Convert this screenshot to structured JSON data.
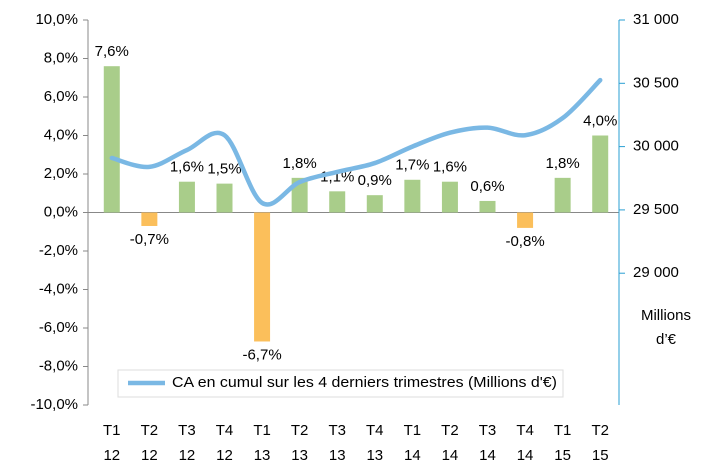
{
  "chart_data": {
    "type": "bar_line",
    "categories": [
      [
        "T1",
        "12"
      ],
      [
        "T2",
        "12"
      ],
      [
        "T3",
        "12"
      ],
      [
        "T4",
        "12"
      ],
      [
        "T1",
        "13"
      ],
      [
        "T2",
        "13"
      ],
      [
        "T3",
        "13"
      ],
      [
        "T4",
        "13"
      ],
      [
        "T1",
        "14"
      ],
      [
        "T2",
        "14"
      ],
      [
        "T3",
        "14"
      ],
      [
        "T4",
        "14"
      ],
      [
        "T1",
        "15"
      ],
      [
        "T2",
        "15"
      ]
    ],
    "series": [
      {
        "type": "bar",
        "colors": [
          "#a9cd8a",
          "#fbbf5b",
          "#a9cd8a",
          "#a9cd8a",
          "#fbbf5b",
          "#a9cd8a",
          "#a9cd8a",
          "#a9cd8a",
          "#a9cd8a",
          "#a9cd8a",
          "#a9cd8a",
          "#fbbf5b",
          "#a9cd8a",
          "#a9cd8a"
        ],
        "values": [
          7.6,
          -0.7,
          1.6,
          1.5,
          -6.7,
          1.8,
          1.1,
          0.9,
          1.7,
          1.6,
          0.6,
          -0.8,
          1.8,
          4.0
        ],
        "value_labels": [
          "7,6%",
          "-0,7%",
          "1,6%",
          "1,5%",
          "-6,7%",
          "1,8%",
          "1,1%",
          "0,9%",
          "1,7%",
          "1,6%",
          "0,6%",
          "-0,8%",
          "1,8%",
          "4,0%"
        ]
      },
      {
        "type": "line",
        "name": "CA en cumul sur les 4 derniers trimestres (Millions d'€)",
        "color": "#7ab8e4",
        "axis": "y2",
        "values": [
          29910,
          29840,
          29973,
          30090,
          29555,
          29720,
          29800,
          29870,
          30000,
          30110,
          30150,
          30090,
          30225,
          30525
        ]
      }
    ],
    "ylim": [
      -10,
      10
    ],
    "yticks": [
      {
        "value": -10,
        "label": "-10,0%"
      },
      {
        "value": -8,
        "label": "-8,0%"
      },
      {
        "value": -6,
        "label": "-6,0%"
      },
      {
        "value": -4,
        "label": "-4,0%"
      },
      {
        "value": -2,
        "label": "-2,0%"
      },
      {
        "value": 0,
        "label": "0,0%"
      },
      {
        "value": 2,
        "label": "2,0%"
      },
      {
        "value": 4,
        "label": "4,0%"
      },
      {
        "value": 6,
        "label": "6,0%"
      },
      {
        "value": 8,
        "label": "8,0%"
      },
      {
        "value": 10,
        "label": "10,0%"
      }
    ],
    "y2lim": [
      27959,
      31000
    ],
    "y2ticks": [
      {
        "value": 29000,
        "label": "29 000"
      },
      {
        "value": 29500,
        "label": "29 500"
      },
      {
        "value": 30000,
        "label": "30 000"
      },
      {
        "value": 30500,
        "label": "30 500"
      },
      {
        "value": 31000,
        "label": "31 000"
      }
    ],
    "y2label": [
      "Millions",
      "d’€"
    ],
    "y2color": "#2a9fd3"
  }
}
